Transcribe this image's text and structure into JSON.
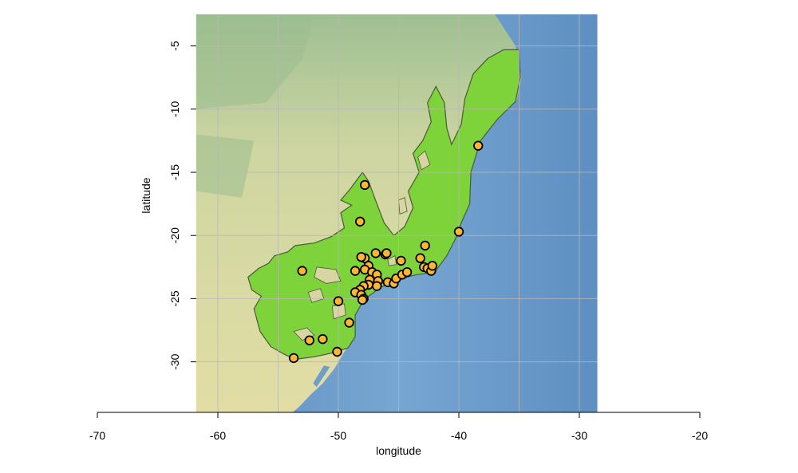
{
  "chart_data": {
    "type": "scatter",
    "title": "",
    "xlabel": "longitude",
    "ylabel": "latitude",
    "xlim": [
      -70,
      -20
    ],
    "ylim": [
      -34,
      -2.5
    ],
    "x_ticks": [
      -70,
      -60,
      -50,
      -40,
      -30,
      -20
    ],
    "y_ticks": [
      -5,
      -10,
      -15,
      -20,
      -25,
      -30
    ],
    "map_extent": {
      "lon": [
        -61.8,
        -28.5
      ],
      "lat": [
        -34,
        -2.5
      ]
    },
    "grid": true,
    "legend": "none",
    "colors": {
      "ocean": "#6f9ecb",
      "land": "#d9d7a0",
      "range": "#7ed23a",
      "point_fill": "#ffb732",
      "point_edge": "#000000",
      "grid": "#b8b8b8"
    },
    "series": [
      {
        "points": [
          [
            -38.4,
            -12.9
          ],
          [
            -40.0,
            -19.7
          ],
          [
            -47.8,
            -16.0
          ],
          [
            -48.2,
            -18.9
          ],
          [
            -53.0,
            -22.8
          ],
          [
            -42.8,
            -20.8
          ],
          [
            -43.2,
            -21.8
          ],
          [
            -44.8,
            -22.0
          ],
          [
            -46.1,
            -21.5
          ],
          [
            -46.0,
            -21.4
          ],
          [
            -46.9,
            -21.4
          ],
          [
            -47.8,
            -21.8
          ],
          [
            -48.1,
            -21.7
          ],
          [
            -47.5,
            -22.4
          ],
          [
            -47.8,
            -22.7
          ],
          [
            -48.6,
            -22.8
          ],
          [
            -47.2,
            -22.9
          ],
          [
            -46.8,
            -23.1
          ],
          [
            -46.7,
            -23.6
          ],
          [
            -47.4,
            -23.5
          ],
          [
            -47.5,
            -23.9
          ],
          [
            -47.9,
            -24.0
          ],
          [
            -46.8,
            -24.0
          ],
          [
            -48.2,
            -24.3
          ],
          [
            -48.6,
            -24.5
          ],
          [
            -48.1,
            -24.7
          ],
          [
            -47.9,
            -25.0
          ],
          [
            -48.0,
            -25.1
          ],
          [
            -50.0,
            -25.2
          ],
          [
            -45.9,
            -23.7
          ],
          [
            -45.4,
            -23.8
          ],
          [
            -45.2,
            -23.4
          ],
          [
            -44.7,
            -23.1
          ],
          [
            -44.3,
            -22.9
          ],
          [
            -42.9,
            -22.5
          ],
          [
            -42.6,
            -22.6
          ],
          [
            -42.3,
            -22.8
          ],
          [
            -42.2,
            -22.4
          ],
          [
            -49.1,
            -26.9
          ],
          [
            -51.3,
            -28.2
          ],
          [
            -52.4,
            -28.3
          ],
          [
            -50.1,
            -29.2
          ],
          [
            -53.7,
            -29.7
          ]
        ]
      }
    ]
  }
}
